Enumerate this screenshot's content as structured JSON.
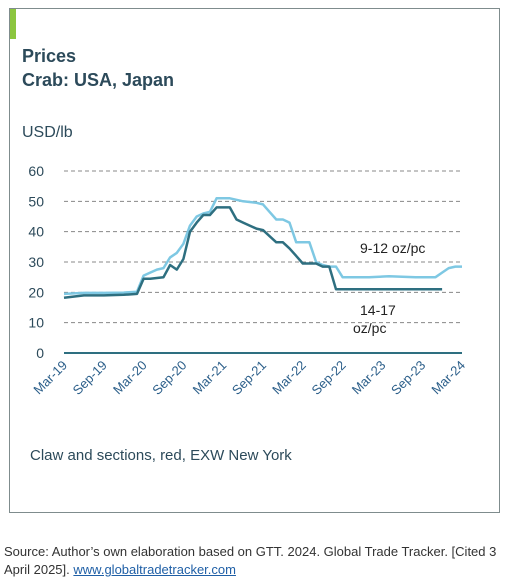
{
  "header": {
    "title_line1": "Prices",
    "title_line2": "Crab: USA, Japan",
    "unit": "USD/lb",
    "subtitle": "Claw and sections, red, EXW New York",
    "accent_color": "#8cc63f"
  },
  "source": {
    "text": "Source: Author’s own elaboration based on GTT. 2024. Global Trade Tracker. [Cited 3 April 2025].",
    "link_text": "www.globaltradetracker.com"
  },
  "chart_data": {
    "type": "line",
    "ylim": [
      0,
      60
    ],
    "yticks": [
      0,
      10,
      20,
      30,
      40,
      50,
      60
    ],
    "ytick_labels": [
      "0",
      "10",
      "20",
      "30",
      "40",
      "50",
      "60"
    ],
    "grid": "horizontal dashed",
    "x_range": [
      "2019-03",
      "2024-03"
    ],
    "xticks": [
      "2019-03",
      "2019-09",
      "2020-03",
      "2020-09",
      "2021-03",
      "2021-09",
      "2022-03",
      "2022-09",
      "2023-03",
      "2023-09",
      "2024-03"
    ],
    "xtick_labels": [
      "Mar-19",
      "Sep-19",
      "Mar-20",
      "Sep-20",
      "Mar-21",
      "Sep-21",
      "Mar-22",
      "Sep-22",
      "Mar-23",
      "Sep-23",
      "Mar-24"
    ],
    "series": [
      {
        "name": "9-12 oz/pc",
        "color": "#7ec8e3",
        "points": [
          [
            "2019-03",
            19.5
          ],
          [
            "2019-06",
            19.8
          ],
          [
            "2019-09",
            19.8
          ],
          [
            "2019-12",
            19.9
          ],
          [
            "2020-02",
            20.2
          ],
          [
            "2020-03",
            25.5
          ],
          [
            "2020-04",
            26.5
          ],
          [
            "2020-05",
            27.5
          ],
          [
            "2020-06",
            28
          ],
          [
            "2020-07",
            31.5
          ],
          [
            "2020-08",
            33
          ],
          [
            "2020-09",
            36
          ],
          [
            "2020-10",
            42
          ],
          [
            "2020-11",
            45
          ],
          [
            "2020-12",
            46
          ],
          [
            "2021-01",
            46.5
          ],
          [
            "2021-02",
            51
          ],
          [
            "2021-04",
            51
          ],
          [
            "2021-06",
            50
          ],
          [
            "2021-08",
            49.5
          ],
          [
            "2021-09",
            49
          ],
          [
            "2021-10",
            46.5
          ],
          [
            "2021-11",
            44
          ],
          [
            "2021-12",
            44
          ],
          [
            "2022-01",
            43
          ],
          [
            "2022-02",
            36.5
          ],
          [
            "2022-04",
            36.5
          ],
          [
            "2022-05",
            30
          ],
          [
            "2022-06",
            29
          ],
          [
            "2022-07",
            28.5
          ],
          [
            "2022-08",
            28.5
          ],
          [
            "2022-09",
            25
          ],
          [
            "2023-01",
            25
          ],
          [
            "2023-04",
            25.3
          ],
          [
            "2023-08",
            25
          ],
          [
            "2023-11",
            25
          ],
          [
            "2023-12",
            26.5
          ],
          [
            "2024-01",
            28
          ],
          [
            "2024-02",
            28.5
          ],
          [
            "2024-03",
            28.5
          ]
        ]
      },
      {
        "name": "14-17 oz/pc",
        "color": "#2e6f80",
        "points": [
          [
            "2019-03",
            18.2
          ],
          [
            "2019-06",
            19
          ],
          [
            "2019-09",
            19
          ],
          [
            "2019-12",
            19.2
          ],
          [
            "2020-02",
            19.5
          ],
          [
            "2020-03",
            24.5
          ],
          [
            "2020-04",
            24.5
          ],
          [
            "2020-06",
            25
          ],
          [
            "2020-07",
            29
          ],
          [
            "2020-08",
            27.5
          ],
          [
            "2020-09",
            31
          ],
          [
            "2020-10",
            40
          ],
          [
            "2020-11",
            43
          ],
          [
            "2020-12",
            45.5
          ],
          [
            "2021-01",
            45.5
          ],
          [
            "2021-02",
            48
          ],
          [
            "2021-04",
            48
          ],
          [
            "2021-05",
            44
          ],
          [
            "2021-06",
            43
          ],
          [
            "2021-07",
            42
          ],
          [
            "2021-08",
            41
          ],
          [
            "2021-09",
            40.5
          ],
          [
            "2021-10",
            38.5
          ],
          [
            "2021-11",
            36.5
          ],
          [
            "2021-12",
            36.5
          ],
          [
            "2022-01",
            34.5
          ],
          [
            "2022-02",
            32
          ],
          [
            "2022-03",
            29.5
          ],
          [
            "2022-05",
            29.5
          ],
          [
            "2022-06",
            28.5
          ],
          [
            "2022-07",
            28.5
          ],
          [
            "2022-08",
            21
          ],
          [
            "2023-12",
            21
          ]
        ]
      }
    ],
    "annotations": [
      "9-12 oz/pc",
      "14-17",
      "oz/pc"
    ]
  }
}
